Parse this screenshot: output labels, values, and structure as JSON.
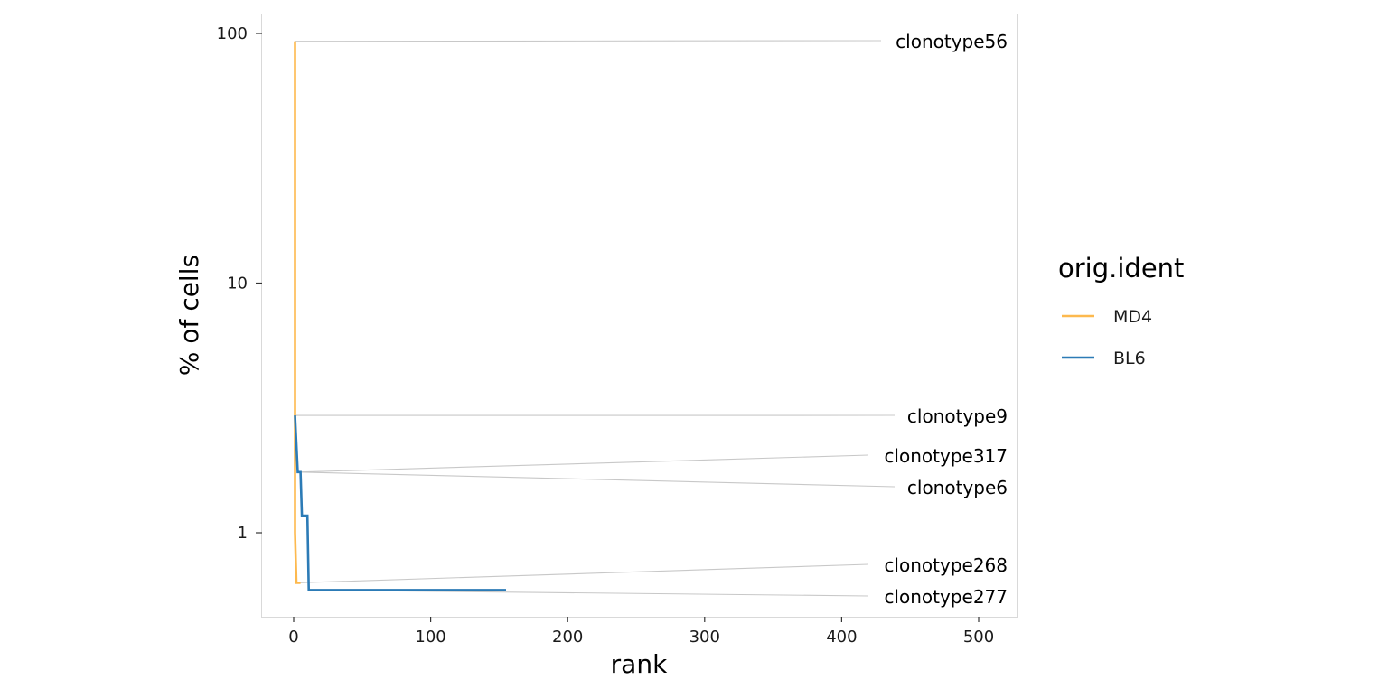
{
  "chart_data": {
    "type": "line",
    "xlabel": "rank",
    "ylabel": "% of cells",
    "xlim": [
      -23,
      527
    ],
    "ylim": [
      0.44,
      120
    ],
    "y_scale": "log10",
    "x_ticks": [
      0,
      100,
      200,
      300,
      400,
      500
    ],
    "y_ticks": [
      1,
      10,
      100
    ],
    "grid": false,
    "legend": {
      "title": "orig.ident",
      "placement": "right"
    },
    "series": [
      {
        "name": "MD4",
        "color": "#FDB94E",
        "points": [
          [
            1,
            93
          ],
          [
            1,
            1.0
          ],
          [
            2,
            0.63
          ],
          [
            5,
            0.63
          ]
        ]
      },
      {
        "name": "BL6",
        "color": "#2C7BB6",
        "points": [
          [
            1,
            2.95
          ],
          [
            3,
            1.75
          ],
          [
            5,
            1.75
          ],
          [
            6,
            1.17
          ],
          [
            10,
            1.17
          ],
          [
            11,
            0.59
          ],
          [
            155,
            0.59
          ]
        ]
      }
    ],
    "annotations": [
      {
        "label": "clonotype56",
        "x": 1,
        "y": 93
      },
      {
        "label": "clonotype9",
        "x": 1,
        "y": 2.95
      },
      {
        "label": "clonotype317",
        "x": 3,
        "y": 1.75
      },
      {
        "label": "clonotype6",
        "x": 3,
        "y": 1.75
      },
      {
        "label": "clonotype268",
        "x": 2,
        "y": 0.63
      },
      {
        "label": "clonotype277",
        "x": 11,
        "y": 0.59
      }
    ]
  }
}
